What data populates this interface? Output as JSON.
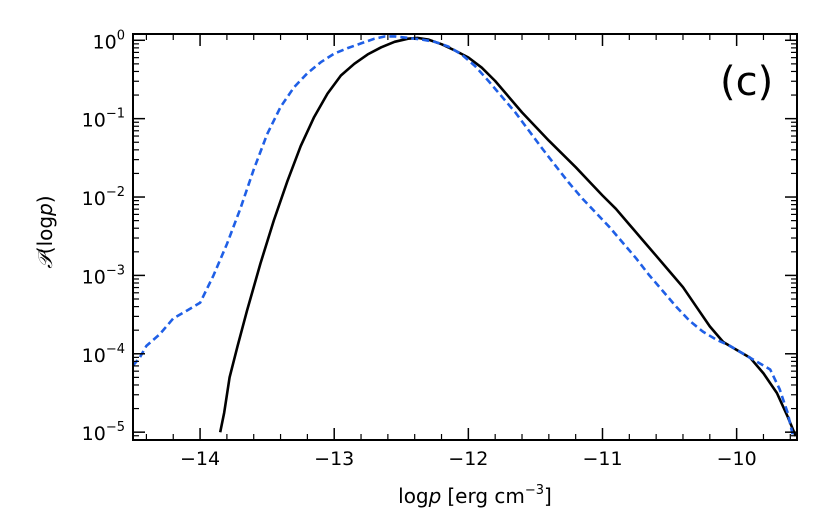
{
  "chart_data": {
    "type": "line",
    "panel_label": "(c)",
    "xlabel": "log",
    "xlabel_var": "p",
    "xlabel_units": "[erg cm",
    "xlabel_exp": "−3",
    "xlabel_close": "]",
    "ylabel_script": "𝒫",
    "ylabel_arg_open": "(log",
    "ylabel_var": "p",
    "ylabel_arg_close": ")",
    "xlim": [
      -14.5,
      -9.55
    ],
    "ylim_log10": [
      -5.1,
      0.08
    ],
    "yscale": "log",
    "x_ticks": [
      {
        "value": -14,
        "label": "−14"
      },
      {
        "value": -13,
        "label": "−13"
      },
      {
        "value": -12,
        "label": "−12"
      },
      {
        "value": -11,
        "label": "−11"
      },
      {
        "value": -10,
        "label": "−10"
      }
    ],
    "y_ticks": [
      {
        "exp": 0,
        "base": "10",
        "sup": "0"
      },
      {
        "exp": -1,
        "base": "10",
        "sup": "−1"
      },
      {
        "exp": -2,
        "base": "10",
        "sup": "−2"
      },
      {
        "exp": -3,
        "base": "10",
        "sup": "−3"
      },
      {
        "exp": -4,
        "base": "10",
        "sup": "−4"
      },
      {
        "exp": -5,
        "base": "10",
        "sup": "−5"
      }
    ],
    "colors": {
      "black": "#000000",
      "blue": "#1f5fe6"
    },
    "series": [
      {
        "name": "solid-black",
        "color": "#000000",
        "dash": "none",
        "x": [
          -13.85,
          -13.82,
          -13.78,
          -13.72,
          -13.65,
          -13.55,
          -13.45,
          -13.35,
          -13.25,
          -13.15,
          -13.05,
          -12.95,
          -12.85,
          -12.75,
          -12.65,
          -12.55,
          -12.45,
          -12.38,
          -12.3,
          -12.2,
          -12.1,
          -12.0,
          -11.9,
          -11.8,
          -11.7,
          -11.6,
          -11.5,
          -11.4,
          -11.3,
          -11.2,
          -11.1,
          -11.0,
          -10.9,
          -10.8,
          -10.7,
          -10.6,
          -10.5,
          -10.4,
          -10.3,
          -10.2,
          -10.1,
          -10.0,
          -9.9,
          -9.8,
          -9.7,
          -9.62,
          -9.56
        ],
        "y": [
          -5.0,
          -4.75,
          -4.3,
          -3.9,
          -3.45,
          -2.85,
          -2.3,
          -1.8,
          -1.35,
          -0.98,
          -0.68,
          -0.45,
          -0.3,
          -0.18,
          -0.09,
          -0.02,
          0.02,
          0.03,
          0.01,
          -0.05,
          -0.13,
          -0.22,
          -0.35,
          -0.52,
          -0.72,
          -0.92,
          -1.1,
          -1.28,
          -1.45,
          -1.62,
          -1.8,
          -1.98,
          -2.15,
          -2.35,
          -2.55,
          -2.75,
          -2.95,
          -3.15,
          -3.4,
          -3.65,
          -3.85,
          -3.95,
          -4.05,
          -4.25,
          -4.5,
          -4.8,
          -5.05
        ]
      },
      {
        "name": "dashed-blue",
        "color": "#1f5fe6",
        "dash": "7,4",
        "x": [
          -14.5,
          -14.45,
          -14.4,
          -14.3,
          -14.2,
          -14.1,
          -14.0,
          -13.9,
          -13.8,
          -13.7,
          -13.6,
          -13.5,
          -13.4,
          -13.3,
          -13.2,
          -13.1,
          -13.0,
          -12.9,
          -12.8,
          -12.7,
          -12.62,
          -12.55,
          -12.45,
          -12.35,
          -12.25,
          -12.15,
          -12.05,
          -11.95,
          -11.85,
          -11.75,
          -11.65,
          -11.55,
          -11.45,
          -11.35,
          -11.25,
          -11.15,
          -11.05,
          -10.95,
          -10.85,
          -10.75,
          -10.65,
          -10.55,
          -10.45,
          -10.35,
          -10.25,
          -10.15,
          -10.05,
          -9.95,
          -9.85,
          -9.75,
          -9.68,
          -9.62,
          -9.58
        ],
        "y": [
          -4.15,
          -4.05,
          -3.9,
          -3.75,
          -3.55,
          -3.45,
          -3.35,
          -3.0,
          -2.6,
          -2.15,
          -1.65,
          -1.2,
          -0.85,
          -0.6,
          -0.42,
          -0.28,
          -0.17,
          -0.1,
          -0.04,
          0.02,
          0.05,
          0.05,
          0.03,
          0.01,
          -0.02,
          -0.08,
          -0.18,
          -0.33,
          -0.52,
          -0.72,
          -0.92,
          -1.15,
          -1.38,
          -1.6,
          -1.82,
          -2.02,
          -2.2,
          -2.38,
          -2.58,
          -2.78,
          -3.0,
          -3.2,
          -3.4,
          -3.58,
          -3.72,
          -3.82,
          -3.9,
          -4.0,
          -4.1,
          -4.2,
          -4.45,
          -4.75,
          -5.05
        ]
      }
    ]
  }
}
